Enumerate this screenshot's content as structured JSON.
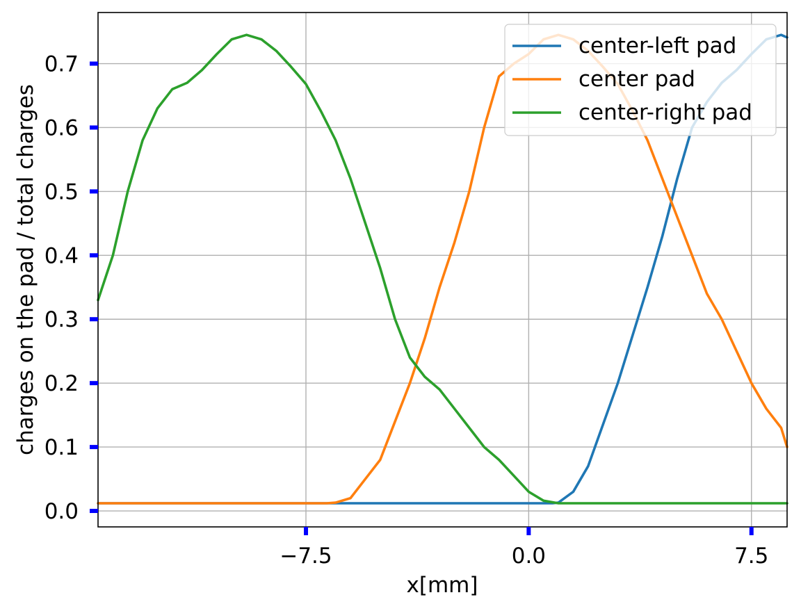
{
  "chart_data": {
    "type": "line",
    "title": "",
    "xlabel": "x[mm]",
    "ylabel": "charges on the pad / total charges",
    "xlim": [
      -14.5,
      8.7
    ],
    "ylim": [
      -0.025,
      0.78
    ],
    "xticks": [
      -7.5,
      0.0,
      7.5
    ],
    "xtick_labels": [
      "−7.5",
      "0.0",
      "7.5"
    ],
    "yticks": [
      0.0,
      0.1,
      0.2,
      0.3,
      0.4,
      0.5,
      0.6,
      0.7
    ],
    "ytick_labels": [
      "0.0",
      "0.1",
      "0.2",
      "0.3",
      "0.4",
      "0.5",
      "0.6",
      "0.7"
    ],
    "grid": true,
    "legend_position": "top-right",
    "tick_color": "#0000ff",
    "series": [
      {
        "name": "center-left pad",
        "color": "#1f77b4",
        "x": [
          -14.5,
          0.8,
          1.0,
          1.5,
          2.0,
          3.0,
          4.0,
          4.5,
          5.0,
          5.5,
          6.0,
          6.5,
          7.0,
          7.5,
          8.0,
          8.5,
          8.7
        ],
        "y": [
          0.012,
          0.012,
          0.013,
          0.03,
          0.07,
          0.2,
          0.35,
          0.43,
          0.52,
          0.6,
          0.64,
          0.67,
          0.69,
          0.715,
          0.738,
          0.745,
          0.741
        ]
      },
      {
        "name": "center pad",
        "color": "#ff7f0e",
        "x": [
          -14.5,
          -6.8,
          -6.5,
          -6.0,
          -5.5,
          -5.0,
          -4.5,
          -4.0,
          -3.5,
          -3.0,
          -2.5,
          -2.0,
          -1.5,
          -1.0,
          -0.5,
          0.0,
          0.5,
          1.0,
          1.5,
          2.0,
          2.5,
          3.0,
          3.5,
          4.0,
          4.5,
          5.0,
          5.5,
          6.0,
          6.5,
          7.0,
          7.5,
          8.0,
          8.5,
          8.7
        ],
        "y": [
          0.012,
          0.012,
          0.013,
          0.02,
          0.05,
          0.08,
          0.14,
          0.2,
          0.27,
          0.35,
          0.42,
          0.5,
          0.6,
          0.68,
          0.7,
          0.715,
          0.738,
          0.745,
          0.738,
          0.72,
          0.695,
          0.668,
          0.626,
          0.58,
          0.52,
          0.46,
          0.4,
          0.34,
          0.3,
          0.25,
          0.2,
          0.16,
          0.13,
          0.1
        ]
      },
      {
        "name": "center-right pad",
        "color": "#2ca02c",
        "x": [
          -14.5,
          -14.0,
          -13.5,
          -13.0,
          -12.5,
          -12.0,
          -11.5,
          -11.0,
          -10.5,
          -10.0,
          -9.5,
          -9.0,
          -8.5,
          -8.0,
          -7.5,
          -7.0,
          -6.5,
          -6.0,
          -5.5,
          -5.0,
          -4.5,
          -4.0,
          -3.5,
          -3.0,
          -2.5,
          -2.0,
          -1.5,
          -1.0,
          -0.5,
          0.0,
          0.5,
          1.0,
          1.5,
          2.0,
          2.5,
          8.7
        ],
        "y": [
          0.33,
          0.4,
          0.5,
          0.58,
          0.63,
          0.66,
          0.67,
          0.69,
          0.715,
          0.738,
          0.745,
          0.738,
          0.72,
          0.695,
          0.668,
          0.626,
          0.58,
          0.52,
          0.45,
          0.38,
          0.3,
          0.24,
          0.21,
          0.19,
          0.16,
          0.13,
          0.1,
          0.08,
          0.055,
          0.03,
          0.016,
          0.012,
          0.012,
          0.012,
          0.012,
          0.012
        ]
      }
    ]
  }
}
